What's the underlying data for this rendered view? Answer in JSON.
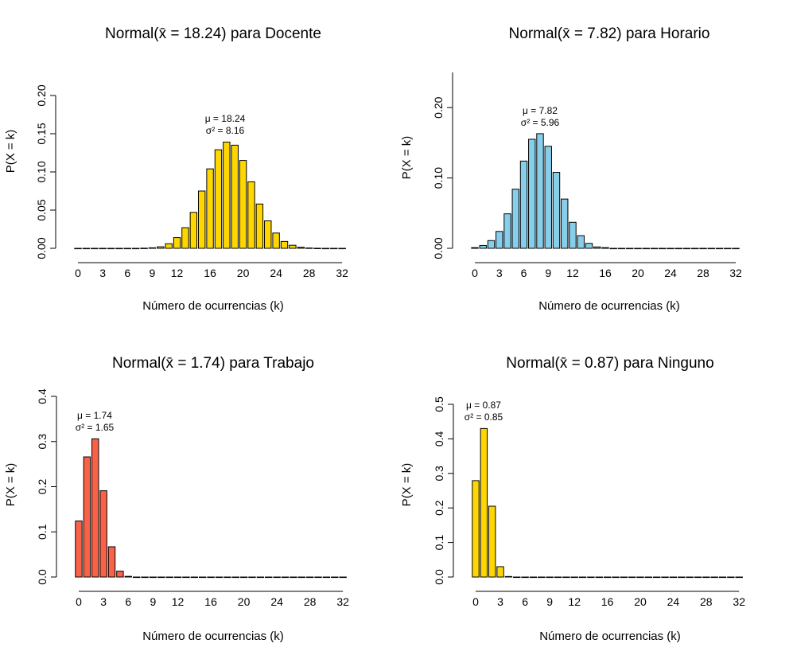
{
  "chart_data": [
    {
      "type": "bar",
      "title": "Normal(x̄ = 18.24) para Docente",
      "xlabel": "Número de ocurrencias (k)",
      "ylabel": "P(X = k)",
      "color": "#FFD700",
      "ylim": [
        0,
        0.2
      ],
      "yticks": [
        "0.00",
        "0.05",
        "0.10",
        "0.15",
        "0.20"
      ],
      "xticks": [
        "0",
        "3",
        "6",
        "9",
        "12",
        "16",
        "20",
        "24",
        "28",
        "32"
      ],
      "annotation": [
        "μ = 18.24",
        "σ² = 8.16"
      ],
      "categories": [
        0,
        1,
        2,
        3,
        4,
        5,
        6,
        7,
        8,
        9,
        10,
        11,
        12,
        13,
        14,
        15,
        16,
        17,
        18,
        19,
        20,
        21,
        22,
        23,
        24,
        25,
        26,
        27,
        28,
        29,
        30,
        31,
        32
      ],
      "values": [
        0,
        0,
        0,
        0,
        0,
        0,
        0,
        0,
        0.0002,
        0.0007,
        0.002,
        0.006,
        0.014,
        0.027,
        0.047,
        0.075,
        0.104,
        0.129,
        0.139,
        0.135,
        0.115,
        0.087,
        0.058,
        0.036,
        0.02,
        0.009,
        0.004,
        0.0015,
        0.0005,
        0.0001,
        0,
        0,
        0
      ]
    },
    {
      "type": "bar",
      "title": "Normal(x̄ = 7.82) para Horario",
      "xlabel": "Número de ocurrencias (k)",
      "ylabel": "P(X = k)",
      "color": "#87CEEB",
      "ylim": [
        0,
        0.25
      ],
      "yticks": [
        "0.00",
        "0.10",
        "0.20"
      ],
      "ytickvals": [
        0,
        0.1,
        0.2
      ],
      "xticks": [
        "0",
        "3",
        "6",
        "9",
        "12",
        "16",
        "20",
        "24",
        "28",
        "32"
      ],
      "annotation": [
        "μ = 7.82",
        "σ² = 5.96"
      ],
      "categories": [
        0,
        1,
        2,
        3,
        4,
        5,
        6,
        7,
        8,
        9,
        10,
        11,
        12,
        13,
        14,
        15,
        16,
        17,
        18,
        19,
        20,
        21,
        22,
        23,
        24,
        25,
        26,
        27,
        28,
        29,
        30,
        31,
        32
      ],
      "values": [
        0.001,
        0.004,
        0.011,
        0.024,
        0.049,
        0.084,
        0.124,
        0.155,
        0.163,
        0.145,
        0.108,
        0.07,
        0.037,
        0.018,
        0.007,
        0.002,
        0.001,
        0,
        0,
        0,
        0,
        0,
        0,
        0,
        0,
        0,
        0,
        0,
        0,
        0,
        0,
        0,
        0
      ]
    },
    {
      "type": "bar",
      "title": "Normal(x̄ = 1.74) para Trabajo",
      "xlabel": "Número de ocurrencias (k)",
      "ylabel": "P(X = k)",
      "color": "#FA6247",
      "ylim": [
        0,
        0.4
      ],
      "yticks": [
        "0.0",
        "0.1",
        "0.2",
        "0.3",
        "0.4"
      ],
      "xticks": [
        "0",
        "3",
        "6",
        "9",
        "12",
        "16",
        "20",
        "24",
        "28",
        "32"
      ],
      "annotation": [
        "μ = 1.74",
        "σ² = 1.65"
      ],
      "categories": [
        0,
        1,
        2,
        3,
        4,
        5,
        6,
        7,
        8,
        9,
        10,
        11,
        12,
        13,
        14,
        15,
        16,
        17,
        18,
        19,
        20,
        21,
        22,
        23,
        24,
        25,
        26,
        27,
        28,
        29,
        30,
        31,
        32
      ],
      "values": [
        0.124,
        0.266,
        0.306,
        0.191,
        0.067,
        0.013,
        0.0015,
        0,
        0,
        0,
        0,
        0,
        0,
        0,
        0,
        0,
        0,
        0,
        0,
        0,
        0,
        0,
        0,
        0,
        0,
        0,
        0,
        0,
        0,
        0,
        0,
        0,
        0
      ]
    },
    {
      "type": "bar",
      "title": "Normal(x̄ = 0.87) para Ninguno",
      "xlabel": "Número de ocurrencias (k)",
      "ylabel": "P(X = k)",
      "color": "#FFD700",
      "ylim": [
        0,
        0.5
      ],
      "yticks": [
        "0.0",
        "0.1",
        "0.2",
        "0.3",
        "0.4",
        "0.5"
      ],
      "xticks": [
        "0",
        "3",
        "6",
        "9",
        "12",
        "16",
        "20",
        "24",
        "28",
        "32"
      ],
      "annotation": [
        "μ = 0.87",
        "σ² = 0.85"
      ],
      "categories": [
        0,
        1,
        2,
        3,
        4,
        5,
        6,
        7,
        8,
        9,
        10,
        11,
        12,
        13,
        14,
        15,
        16,
        17,
        18,
        19,
        20,
        21,
        22,
        23,
        24,
        25,
        26,
        27,
        28,
        29,
        30,
        31,
        32
      ],
      "values": [
        0.279,
        0.43,
        0.205,
        0.03,
        0.0015,
        0,
        0,
        0,
        0,
        0,
        0,
        0,
        0,
        0,
        0,
        0,
        0,
        0,
        0,
        0,
        0,
        0,
        0,
        0,
        0,
        0,
        0,
        0,
        0,
        0,
        0,
        0,
        0
      ]
    }
  ]
}
